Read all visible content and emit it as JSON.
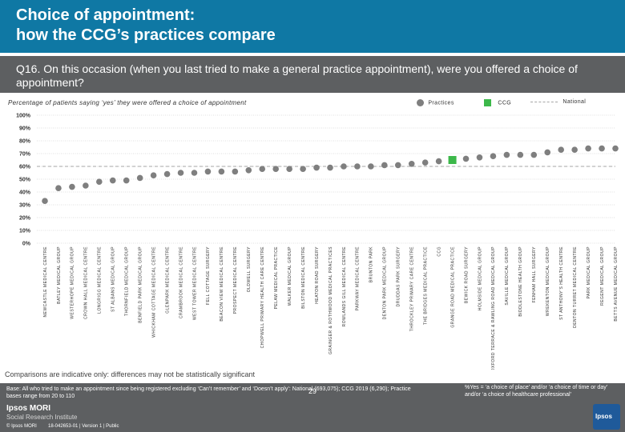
{
  "header": {
    "title_line1": "Choice of appointment:",
    "title_line2": "how the CCG’s practices compare"
  },
  "question": "Q16. On this occasion (when you last tried to make a general practice appointment), were you offered a choice of appointment?",
  "legend": {
    "practices": "Practices",
    "ccg": "CCG",
    "national": "National"
  },
  "colors": {
    "header": "#0f78a4",
    "band": "#5d5f61",
    "practice": "#7f7f7f",
    "ccg": "#3cb84a",
    "national": "#a6a6a6",
    "grid": "#bfbfbf"
  },
  "chart_data": {
    "type": "scatter",
    "title": "Percentage of patients saying ‘yes’ they were offered a choice of appointment",
    "ylim": [
      0,
      100
    ],
    "yticks": [
      "100%",
      "90%",
      "80%",
      "70%",
      "60%",
      "50%",
      "40%",
      "30%",
      "20%",
      "10%",
      "0%"
    ],
    "national": 60,
    "ccg_index": 30,
    "categories": [
      "NEWCASTLE MEDICAL CENTRE",
      "BATLEY MEDICAL GROUP",
      "WESTERHOPE MEDICAL GROUP",
      "CROWN HALL MEDICAL CENTRE",
      "LONGRIGG MEDICAL CENTRE",
      "ST ALBANS MEDICAL GROUP",
      "THORNFIELD MEDICAL GROUP",
      "BENFIELD PARK MEDICAL GROUP",
      "WHICKHAM COTTAGE MEDICAL CENTRE",
      "GLENPARK MEDICAL CENTRE",
      "CRAMBROOK MEDICAL CENTRE",
      "WEST TOWER MEDICAL CENTRE",
      "FELL COTTAGE SURGERY",
      "BEACON VIEW MEDICAL CENTRE",
      "PROSPECT MEDICAL CENTRE",
      "OLDWELL SURGERY",
      "CHOPWELL PRIMARY HEALTH CARE CENTRE",
      "PELAW MEDICAL PRACTICE",
      "WALKER MEDICAL GROUP",
      "BILSTON MEDICAL CENTRE",
      "HEATON ROAD SURGERY",
      "GRAINGER & ROTHWOOD MEDICAL PRACTICES",
      "ROWLANDS GILL MEDICAL CENTRE",
      "PARKWAY MEDICAL CENTRE",
      "BRUNTON PARK",
      "DENTON PARK MEDICAL GROUP",
      "DRUDDAS PARK SURGERY",
      "THROCKLEY PRIMARY CARE CENTRE",
      "THE BRIDGES MEDICAL PRACTICE",
      "CCG",
      "GRANGE ROAD MEDICAL PRACTICE",
      "BEWICK ROAD SURGERY",
      "HOLMSIDE MEDICAL GROUP",
      "OXFORD TERRACE & RAWLING ROAD MEDICAL GROUP",
      "SAVILLE MEDICAL GROUP",
      "BIDDLESTONE HEALTH GROUP",
      "FENHAM HALL SURGERY",
      "WREKENTON MEDICAL GROUP",
      "ST ANTHONY'S HEALTH CENTRE",
      "DENTON TURRET MEDICAL CENTRE",
      "PARK MEDICAL GROUP",
      "REGENT MEDICAL GROUP",
      "BETTS AVENUE MEDICAL GROUP"
    ],
    "values": [
      33,
      43,
      44,
      45,
      48,
      49,
      49,
      51,
      53,
      54,
      55,
      55,
      56,
      56,
      56,
      57,
      58,
      58,
      58,
      58,
      59,
      59,
      60,
      60,
      60,
      61,
      61,
      62,
      63,
      64,
      65,
      66,
      67,
      68,
      69,
      69,
      69,
      71,
      73,
      73,
      74,
      74,
      74
    ]
  },
  "note": "Comparisons are indicative only: differences may not be statistically significant",
  "footer": {
    "base": "Base: All who tried to make an appointment since being registered excluding ‘Can’t remember’ and ‘Doesn’t apply’: National (693,075); CCG 2019 (6,290); Practice bases range from 20 to 110",
    "footnote": "%Yes = ‘a choice of place’ and/or ‘a choice of time or day’ and/or ‘a choice of healthcare professional’",
    "logo_line1": "Ipsos MORI",
    "logo_line2": "Social Research Institute",
    "copyright": "© Ipsos MORI",
    "job": "18-042653-01 | Version 1 | Public",
    "page": "29",
    "ipsos_badge": "Ipsos"
  }
}
